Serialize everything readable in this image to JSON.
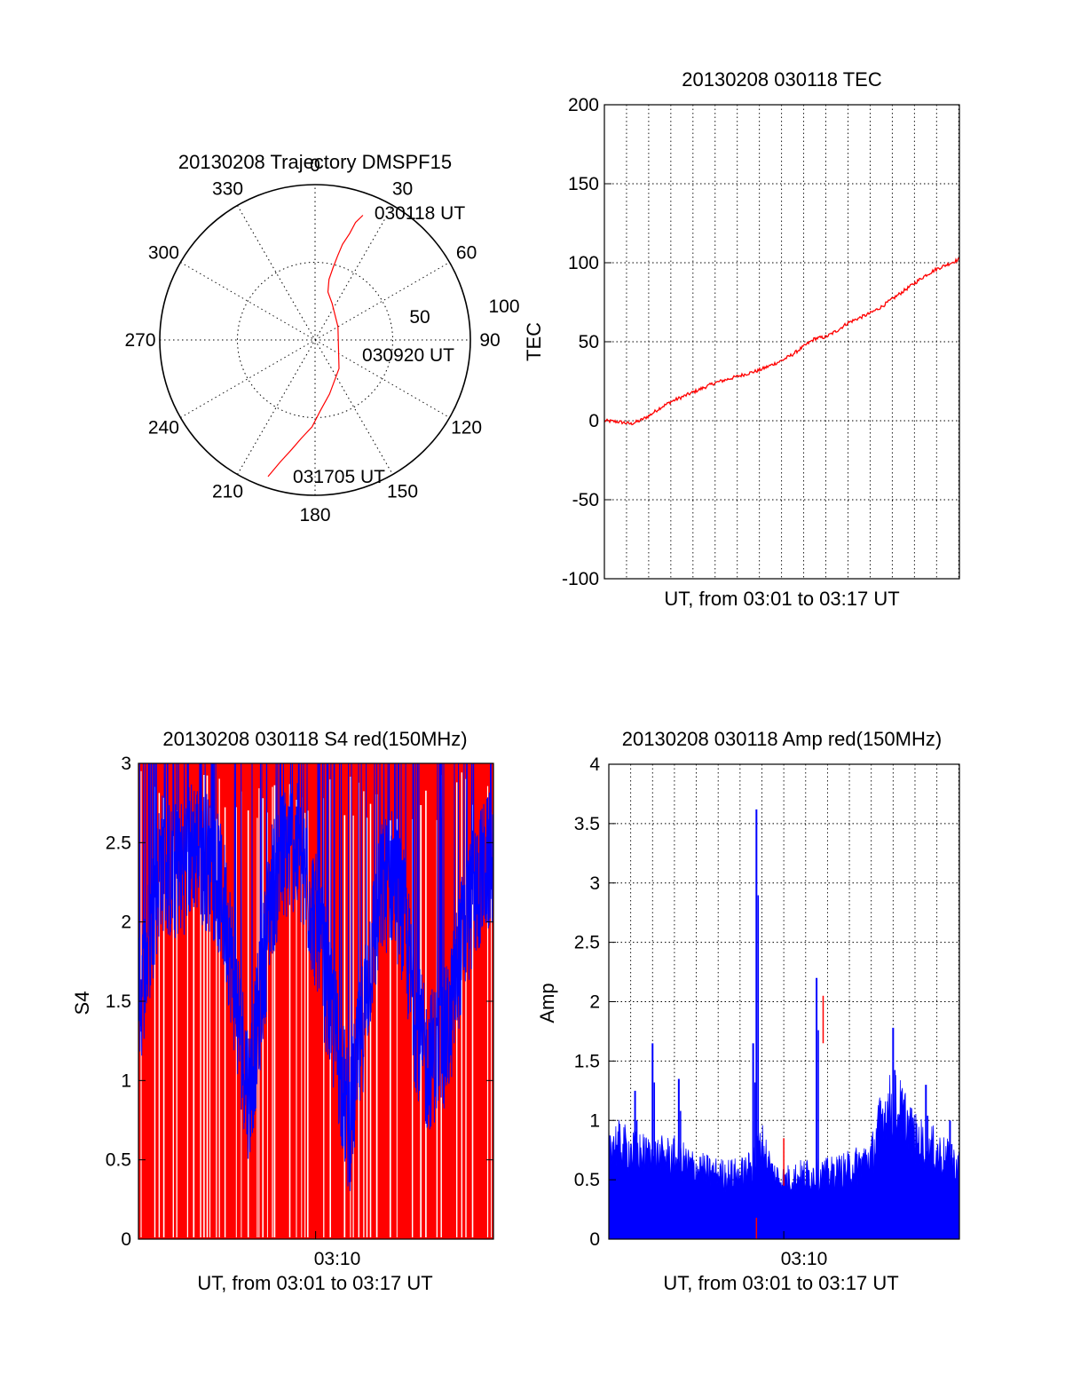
{
  "colors": {
    "red": "#ff0000",
    "blue": "#0000ff",
    "axis": "#000000",
    "grid": "#000000"
  },
  "chart_data": [
    {
      "type": "polar",
      "title": "20130208 Trajectory DMSPF15",
      "azimuth_labels": [
        "0",
        "30",
        "60",
        "90",
        "120",
        "150",
        "180",
        "210",
        "240",
        "270",
        "300",
        "330"
      ],
      "radius_labels": [
        "50",
        "100"
      ],
      "grid": true,
      "series": [
        {
          "color": "red",
          "points_az_r": [
            [
              21,
              86
            ],
            [
              19,
              80
            ],
            [
              18,
              72
            ],
            [
              16,
              64
            ],
            [
              15,
              56
            ],
            [
              14,
              48
            ],
            [
              13,
              40
            ],
            [
              15,
              32
            ],
            [
              25,
              26
            ],
            [
              60,
              17
            ],
            [
              140,
              24
            ],
            [
              165,
              36
            ],
            [
              176,
              46
            ],
            [
              182,
              56
            ],
            [
              188,
              64
            ],
            [
              192,
              72
            ],
            [
              196,
              82
            ],
            [
              199,
              93
            ]
          ]
        }
      ],
      "annotations": [
        "030118 UT",
        "030920 UT",
        "031705 UT"
      ]
    },
    {
      "type": "line",
      "title": "20130208 030118 TEC",
      "xlabel": "UT, from 03:01 to 03:17 UT",
      "ylabel": "TEC",
      "ylim": [
        -100,
        200
      ],
      "yticks": [
        "-100",
        "-50",
        "0",
        "50",
        "100",
        "150",
        "200"
      ],
      "xlim_minutes": [
        0,
        16.03
      ],
      "grid": true,
      "series": [
        {
          "color": "red",
          "points": [
            [
              0,
              0
            ],
            [
              0.5,
              -0.5
            ],
            [
              0.8,
              -1
            ],
            [
              1.2,
              -2
            ],
            [
              1.6,
              0
            ],
            [
              2.0,
              3
            ],
            [
              2.5,
              8
            ],
            [
              3.0,
              12
            ],
            [
              3.5,
              15
            ],
            [
              4.0,
              18
            ],
            [
              4.5,
              21
            ],
            [
              5.0,
              24
            ],
            [
              5.5,
              26
            ],
            [
              6.0,
              28
            ],
            [
              6.5,
              30
            ],
            [
              7.0,
              32
            ],
            [
              7.5,
              35
            ],
            [
              8.0,
              38
            ],
            [
              8.5,
              42
            ],
            [
              9.0,
              47
            ],
            [
              9.5,
              52
            ],
            [
              10.0,
              53
            ],
            [
              10.5,
              57
            ],
            [
              11.0,
              62
            ],
            [
              11.5,
              65
            ],
            [
              12.0,
              68
            ],
            [
              12.5,
              72
            ],
            [
              13.0,
              77
            ],
            [
              13.5,
              82
            ],
            [
              14.0,
              87
            ],
            [
              14.5,
              92
            ],
            [
              15.0,
              96
            ],
            [
              15.5,
              99
            ],
            [
              16.0,
              102
            ]
          ]
        }
      ]
    },
    {
      "type": "line",
      "title": "20130208 030118 S4 red(150MHz)",
      "xlabel": "UT, from 03:01 to 03:17 UT",
      "ylabel": "S4",
      "ylim": [
        0,
        3
      ],
      "yticks": [
        "0",
        "0.5",
        "1",
        "1.5",
        "2",
        "2.5",
        "3"
      ],
      "xticks": [
        {
          "minute": 8,
          "label": "03:10"
        }
      ],
      "xlim_minutes": [
        0,
        16.03
      ],
      "series": [
        {
          "color": "red",
          "style": "dense oscillation between 0 and 3"
        },
        {
          "color": "blue",
          "envelope": [
            [
              0,
              1.45
            ],
            [
              0.5,
              1.9
            ],
            [
              1,
              2.4
            ],
            [
              1.5,
              2.3
            ],
            [
              2,
              2.35
            ],
            [
              2.5,
              2.5
            ],
            [
              3,
              2.4
            ],
            [
              3.5,
              2.3
            ],
            [
              4,
              2.0
            ],
            [
              4.5,
              1.4
            ],
            [
              5,
              0.9
            ],
            [
              5.5,
              1.5
            ],
            [
              6,
              2.2
            ],
            [
              6.5,
              2.4
            ],
            [
              7,
              2.5
            ],
            [
              7.5,
              2.3
            ],
            [
              8,
              2.0
            ],
            [
              8.5,
              1.6
            ],
            [
              9,
              1.2
            ],
            [
              9.5,
              0.7
            ],
            [
              10,
              1.2
            ],
            [
              10.5,
              1.8
            ],
            [
              11,
              2.2
            ],
            [
              11.5,
              2.3
            ],
            [
              12,
              2.0
            ],
            [
              12.5,
              1.4
            ],
            [
              13,
              1.1
            ],
            [
              13.5,
              1.2
            ],
            [
              14,
              1.3
            ],
            [
              14.5,
              1.8
            ],
            [
              15,
              2.1
            ],
            [
              15.5,
              2.3
            ],
            [
              16,
              2.4
            ]
          ]
        }
      ]
    },
    {
      "type": "line",
      "title": "20130208 030118 Amp red(150MHz)",
      "xlabel": "UT, from 03:01 to 03:17 UT",
      "ylabel": "Amp",
      "ylim": [
        0,
        4
      ],
      "yticks": [
        "0",
        "0.5",
        "1",
        "1.5",
        "2",
        "2.5",
        "3",
        "3.5",
        "4"
      ],
      "xticks": [
        {
          "minute": 8,
          "label": "03:10"
        }
      ],
      "xlim_minutes": [
        0,
        16.03
      ],
      "grid": true,
      "series": [
        {
          "color": "blue",
          "envelope": [
            [
              0,
              0.85
            ],
            [
              1,
              0.75
            ],
            [
              2,
              0.7
            ],
            [
              3,
              0.7
            ],
            [
              4,
              0.6
            ],
            [
              5,
              0.55
            ],
            [
              6,
              0.55
            ],
            [
              6.5,
              0.6
            ],
            [
              7,
              0.8
            ],
            [
              7.5,
              0.55
            ],
            [
              8,
              0.5
            ],
            [
              9,
              0.55
            ],
            [
              10,
              0.55
            ],
            [
              11,
              0.6
            ],
            [
              12,
              0.7
            ],
            [
              12.5,
              1.05
            ],
            [
              13,
              1.15
            ],
            [
              13.5,
              1.05
            ],
            [
              14,
              0.85
            ],
            [
              15,
              0.75
            ],
            [
              16,
              0.6
            ]
          ],
          "spikes": [
            [
              6.75,
              3.62
            ],
            [
              6.6,
              1.65
            ],
            [
              9.5,
              2.2
            ],
            [
              2.0,
              1.65
            ],
            [
              13.0,
              1.78
            ],
            [
              1.2,
              1.25
            ],
            [
              3.2,
              1.35
            ],
            [
              14.5,
              1.3
            ],
            [
              15.6,
              1.0
            ]
          ]
        },
        {
          "color": "red",
          "spikes": [
            [
              6.75,
              0.18
            ],
            [
              9.8,
              2.05
            ],
            [
              8.0,
              0.85
            ]
          ]
        }
      ]
    }
  ]
}
